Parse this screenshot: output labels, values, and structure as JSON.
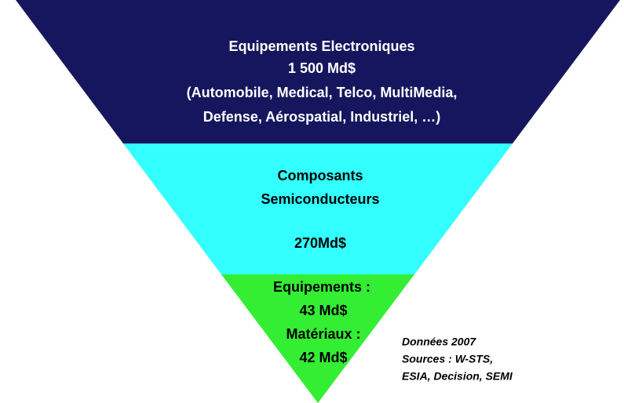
{
  "levels": [
    {
      "lines": [
        "Equipements Electroniques",
        "1 500 Md$",
        "(Automobile, Medical, Telco, MultiMedia,",
        "Defense, Aérospatial, Industriel, …)"
      ]
    },
    {
      "lines": [
        "Composants",
        "Semiconducteurs",
        "270Md$"
      ]
    },
    {
      "lines": [
        "Equipements :",
        "43 Md$",
        "Matériaux :",
        "42 Md$"
      ]
    }
  ],
  "note": {
    "lines": [
      "Données 2007",
      "Sources : W-STS,",
      "ESIA, Decision, SEMI"
    ]
  }
}
